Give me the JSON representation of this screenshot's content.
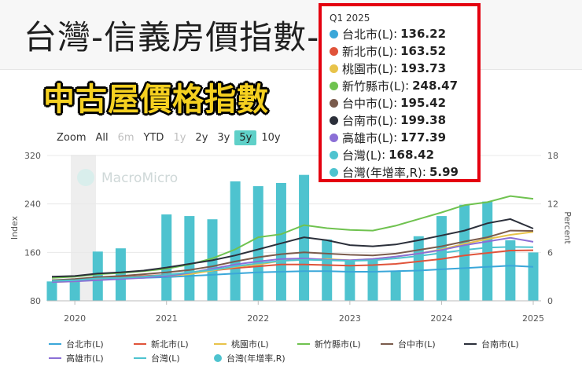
{
  "header": {
    "title": "台灣-信義房價指數-"
  },
  "banner": {
    "text": "中古屋價格指數"
  },
  "zoom": {
    "label": "Zoom",
    "buttons": [
      "All",
      "6m",
      "YTD",
      "1y",
      "2y",
      "3y",
      "5y",
      "10y"
    ],
    "active": "5y",
    "disabled": [
      "6m",
      "1y"
    ]
  },
  "watermark": "MacroMicro",
  "tooltip": {
    "header": "Q1 2025",
    "rows": [
      {
        "name": "台北市(L)",
        "value": "136.22",
        "color": "#3aa7d9"
      },
      {
        "name": "新北市(L)",
        "value": "163.52",
        "color": "#e0533a"
      },
      {
        "name": "桃園市(L)",
        "value": "193.73",
        "color": "#e8c34a"
      },
      {
        "name": "新竹縣市(L)",
        "value": "248.47",
        "color": "#6fc24f"
      },
      {
        "name": "台中市(L)",
        "value": "195.42",
        "color": "#7a5b4c"
      },
      {
        "name": "台南市(L)",
        "value": "199.38",
        "color": "#2b2f3a"
      },
      {
        "name": "高雄市(L)",
        "value": "177.39",
        "color": "#8b6fd6"
      },
      {
        "name": "台灣(L)",
        "value": "168.42",
        "color": "#4ec3cf"
      },
      {
        "name": "台灣(年增率,R)",
        "value": "5.99",
        "color": "#4ec3cf"
      }
    ]
  },
  "chart_data": {
    "type": "bar+line",
    "title": "",
    "ylabel_left": "Index",
    "ylabel_right": "Percent",
    "ylim_left": [
      80,
      320
    ],
    "ylim_right": [
      0,
      18
    ],
    "yticks_left": [
      "80",
      "160",
      "240",
      "320"
    ],
    "yticks_right": [
      "0",
      "6",
      "12",
      "18"
    ],
    "xticks": [
      "2020",
      "2021",
      "2022",
      "2023",
      "2024",
      "2025"
    ],
    "x": [
      "2019Q4",
      "2020Q1",
      "2020Q2",
      "2020Q3",
      "2020Q4",
      "2021Q1",
      "2021Q2",
      "2021Q3",
      "2021Q4",
      "2022Q1",
      "2022Q2",
      "2022Q3",
      "2022Q4",
      "2023Q1",
      "2023Q2",
      "2023Q3",
      "2023Q4",
      "2024Q1",
      "2024Q2",
      "2024Q3",
      "2024Q4",
      "2025Q1"
    ],
    "series": [
      {
        "name": "台北市(L)",
        "axis": "left",
        "kind": "line",
        "color": "#3aa7d9",
        "values": [
          113,
          114,
          116,
          117,
          118,
          119,
          121,
          123,
          125,
          127,
          128,
          129,
          129,
          128,
          128,
          129,
          130,
          132,
          134,
          136,
          138,
          136.22
        ]
      },
      {
        "name": "新北市(L)",
        "axis": "left",
        "kind": "line",
        "color": "#e0533a",
        "values": [
          114,
          115,
          118,
          119,
          121,
          123,
          126,
          130,
          134,
          137,
          140,
          140,
          139,
          138,
          139,
          141,
          145,
          149,
          155,
          159,
          163,
          163.52
        ]
      },
      {
        "name": "桃園市(L)",
        "axis": "left",
        "kind": "line",
        "color": "#e8c34a",
        "values": [
          111,
          112,
          116,
          117,
          119,
          121,
          124,
          130,
          136,
          140,
          146,
          148,
          149,
          147,
          149,
          153,
          158,
          165,
          174,
          182,
          189,
          193.73
        ]
      },
      {
        "name": "新竹縣市(L)",
        "axis": "left",
        "kind": "line",
        "color": "#6fc24f",
        "values": [
          118,
          120,
          124,
          126,
          129,
          133,
          140,
          150,
          165,
          185,
          190,
          205,
          200,
          197,
          196,
          204,
          215,
          226,
          238,
          243,
          253,
          248.47
        ]
      },
      {
        "name": "台中市(L)",
        "axis": "left",
        "kind": "line",
        "color": "#7a5b4c",
        "values": [
          114,
          116,
          119,
          121,
          124,
          127,
          131,
          137,
          145,
          152,
          157,
          160,
          158,
          156,
          155,
          158,
          164,
          170,
          178,
          185,
          196,
          195.42
        ]
      },
      {
        "name": "台南市(L)",
        "axis": "left",
        "kind": "line",
        "color": "#2b2f3a",
        "values": [
          120,
          121,
          125,
          127,
          130,
          135,
          141,
          147,
          155,
          165,
          175,
          185,
          180,
          172,
          170,
          173,
          180,
          188,
          196,
          208,
          215,
          199.38
        ]
      },
      {
        "name": "高雄市(L)",
        "axis": "left",
        "kind": "line",
        "color": "#8b6fd6",
        "values": [
          111,
          112,
          114,
          116,
          118,
          121,
          126,
          133,
          140,
          145,
          149,
          150,
          148,
          147,
          149,
          153,
          158,
          164,
          172,
          178,
          184,
          177.39
        ]
      },
      {
        "name": "台灣(L)",
        "axis": "left",
        "kind": "line",
        "color": "#4ec3cf",
        "values": [
          113,
          114,
          117,
          118,
          120,
          123,
          127,
          131,
          137,
          142,
          146,
          148,
          147,
          146,
          147,
          150,
          154,
          159,
          164,
          168,
          169,
          168.42
        ]
      },
      {
        "name": "台灣(年增率,R)",
        "axis": "right",
        "kind": "bar",
        "color": "#4ec3cf",
        "values": [
          2.4,
          2.6,
          6.1,
          6.5,
          null,
          10.7,
          10.5,
          10.1,
          14.8,
          14.2,
          14.6,
          15.6,
          7.6,
          4.9,
          5.1,
          3.7,
          8.0,
          10.5,
          11.9,
          12.3,
          7.5,
          5.99
        ]
      }
    ]
  },
  "legend": [
    "台北市(L)",
    "新北市(L)",
    "桃園市(L)",
    "新竹縣市(L)",
    "台中市(L)",
    "台南市(L)",
    "高雄市(L)",
    "台灣(L)",
    "台灣(年增率,R)"
  ]
}
